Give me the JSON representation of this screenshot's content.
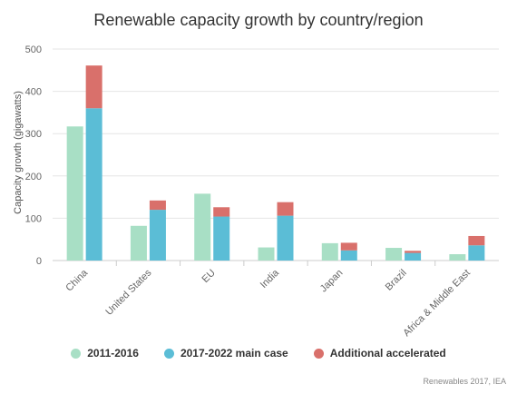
{
  "chart_data": {
    "type": "bar",
    "title": "Renewable capacity growth by country/region",
    "xlabel": "",
    "ylabel": "Capacity growth (gigawatts)",
    "ylim": [
      0,
      500
    ],
    "yticks": [
      0,
      100,
      200,
      300,
      400,
      500
    ],
    "grid": true,
    "legend_position": "bottom",
    "categories": [
      "China",
      "United States",
      "EU",
      "India",
      "Japan",
      "Brazil",
      "Africa & Middle East"
    ],
    "series": [
      {
        "name": "2011-2016",
        "color": "#a8dfc5",
        "stack": "a",
        "values": [
          317,
          82,
          158,
          31,
          41,
          30,
          15
        ]
      },
      {
        "name": "2017-2022 main case",
        "color": "#5bbdd6",
        "stack": "b",
        "values": [
          360,
          120,
          104,
          106,
          24,
          18,
          36
        ]
      },
      {
        "name": "Additional accelerated",
        "color": "#d9706b",
        "stack": "b",
        "values": [
          101,
          22,
          22,
          32,
          18,
          5,
          22
        ]
      }
    ]
  },
  "source": "Renewables 2017, IEA"
}
